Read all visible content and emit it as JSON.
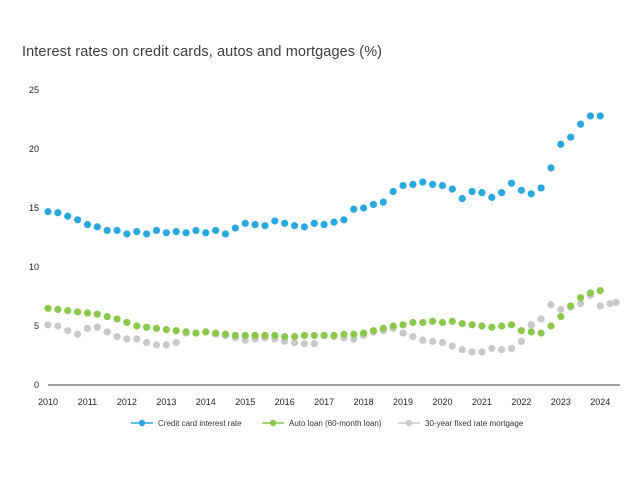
{
  "chart_data": {
    "type": "scatter",
    "title": "Interest rates on credit cards, autos and mortgages (%)",
    "xlabel": "",
    "ylabel": "",
    "xlim": [
      2010,
      2024.5
    ],
    "ylim": [
      0,
      25
    ],
    "x_ticks": [
      "2010",
      "2011",
      "2012",
      "2013",
      "2014",
      "2015",
      "2016",
      "2017",
      "2018",
      "2019",
      "2020",
      "2021",
      "2022",
      "2023",
      "2024"
    ],
    "y_ticks": [
      "0",
      "5",
      "10",
      "15",
      "20",
      "25"
    ],
    "grid": false,
    "legend_position": "bottom",
    "series": [
      {
        "name": "Credit card interest rate",
        "color": "#2aa8e0",
        "x": [
          2010.0,
          2010.25,
          2010.5,
          2010.75,
          2011.0,
          2011.25,
          2011.5,
          2011.75,
          2012.0,
          2012.25,
          2012.5,
          2012.75,
          2013.0,
          2013.25,
          2013.5,
          2013.75,
          2014.0,
          2014.25,
          2014.5,
          2014.75,
          2015.0,
          2015.25,
          2015.5,
          2015.75,
          2016.0,
          2016.25,
          2016.5,
          2016.75,
          2017.0,
          2017.25,
          2017.5,
          2017.75,
          2018.0,
          2018.25,
          2018.5,
          2018.75,
          2019.0,
          2019.25,
          2019.5,
          2019.75,
          2020.0,
          2020.25,
          2020.5,
          2020.75,
          2021.0,
          2021.25,
          2021.5,
          2021.75,
          2022.0,
          2022.25,
          2022.5,
          2022.75,
          2023.0,
          2023.25,
          2023.5,
          2023.75,
          2024.0
        ],
        "y": [
          14.7,
          14.6,
          14.3,
          14.0,
          13.6,
          13.4,
          13.1,
          13.1,
          12.8,
          13.0,
          12.8,
          13.1,
          12.9,
          13.0,
          12.9,
          13.1,
          12.9,
          13.1,
          12.8,
          13.3,
          13.7,
          13.6,
          13.5,
          13.9,
          13.7,
          13.5,
          13.4,
          13.7,
          13.6,
          13.8,
          14.0,
          14.9,
          15.0,
          15.3,
          15.5,
          16.4,
          16.9,
          17.0,
          17.2,
          17.0,
          16.9,
          16.6,
          15.8,
          16.4,
          16.3,
          15.9,
          16.3,
          17.1,
          16.5,
          16.2,
          16.7,
          18.4,
          20.4,
          21.0,
          22.1,
          22.8,
          22.8
        ]
      },
      {
        "name": "Auto loan (60-month loan)",
        "color": "#8cc84b",
        "x": [
          2010.0,
          2010.25,
          2010.5,
          2010.75,
          2011.0,
          2011.25,
          2011.5,
          2011.75,
          2012.0,
          2012.25,
          2012.5,
          2012.75,
          2013.0,
          2013.25,
          2013.5,
          2013.75,
          2014.0,
          2014.25,
          2014.5,
          2014.75,
          2015.0,
          2015.25,
          2015.5,
          2015.75,
          2016.0,
          2016.25,
          2016.5,
          2016.75,
          2017.0,
          2017.25,
          2017.5,
          2017.75,
          2018.0,
          2018.25,
          2018.5,
          2018.75,
          2019.0,
          2019.25,
          2019.5,
          2019.75,
          2020.0,
          2020.25,
          2020.5,
          2020.75,
          2021.0,
          2021.25,
          2021.5,
          2021.75,
          2022.0,
          2022.25,
          2022.5,
          2022.75,
          2023.0,
          2023.25,
          2023.5,
          2023.75,
          2024.0
        ],
        "y": [
          6.5,
          6.4,
          6.3,
          6.2,
          6.1,
          6.0,
          5.8,
          5.6,
          5.3,
          5.0,
          4.9,
          4.8,
          4.7,
          4.6,
          4.5,
          4.4,
          4.5,
          4.4,
          4.3,
          4.2,
          4.2,
          4.2,
          4.2,
          4.2,
          4.1,
          4.1,
          4.2,
          4.2,
          4.2,
          4.2,
          4.3,
          4.3,
          4.4,
          4.6,
          4.8,
          5.0,
          5.1,
          5.3,
          5.3,
          5.4,
          5.3,
          5.4,
          5.2,
          5.1,
          5.0,
          4.9,
          5.0,
          5.1,
          4.6,
          4.5,
          4.4,
          5.0,
          5.8,
          6.7,
          7.4,
          7.8,
          8.0
        ]
      },
      {
        "name": "30-year fixed rate mortgage",
        "color": "#c9c9c9",
        "x": [
          2010.0,
          2010.25,
          2010.5,
          2010.75,
          2011.0,
          2011.25,
          2011.5,
          2011.75,
          2012.0,
          2012.25,
          2012.5,
          2012.75,
          2013.0,
          2013.25,
          2013.5,
          2013.75,
          2014.0,
          2014.25,
          2014.5,
          2014.75,
          2015.0,
          2015.25,
          2015.5,
          2015.75,
          2016.0,
          2016.25,
          2016.5,
          2016.75,
          2017.0,
          2017.25,
          2017.5,
          2017.75,
          2018.0,
          2018.25,
          2018.5,
          2018.75,
          2019.0,
          2019.25,
          2019.5,
          2019.75,
          2020.0,
          2020.25,
          2020.5,
          2020.75,
          2021.0,
          2021.25,
          2021.5,
          2021.75,
          2022.0,
          2022.25,
          2022.5,
          2022.75,
          2023.0,
          2023.25,
          2023.5,
          2023.75,
          2024.0,
          2024.25,
          2024.4
        ],
        "y": [
          5.1,
          5.0,
          4.6,
          4.3,
          4.8,
          4.9,
          4.5,
          4.1,
          3.9,
          3.9,
          3.6,
          3.4,
          3.4,
          3.6,
          4.4,
          4.4,
          4.5,
          4.3,
          4.2,
          4.0,
          3.8,
          3.9,
          4.0,
          3.9,
          3.7,
          3.6,
          3.5,
          3.5,
          4.2,
          4.1,
          4.0,
          3.9,
          4.2,
          4.5,
          4.6,
          4.8,
          4.4,
          4.1,
          3.8,
          3.7,
          3.6,
          3.3,
          3.0,
          2.8,
          2.8,
          3.1,
          3.0,
          3.1,
          3.7,
          5.1,
          5.6,
          6.8,
          6.4,
          6.6,
          6.9,
          7.6,
          6.7,
          6.9,
          7.0
        ]
      }
    ]
  }
}
